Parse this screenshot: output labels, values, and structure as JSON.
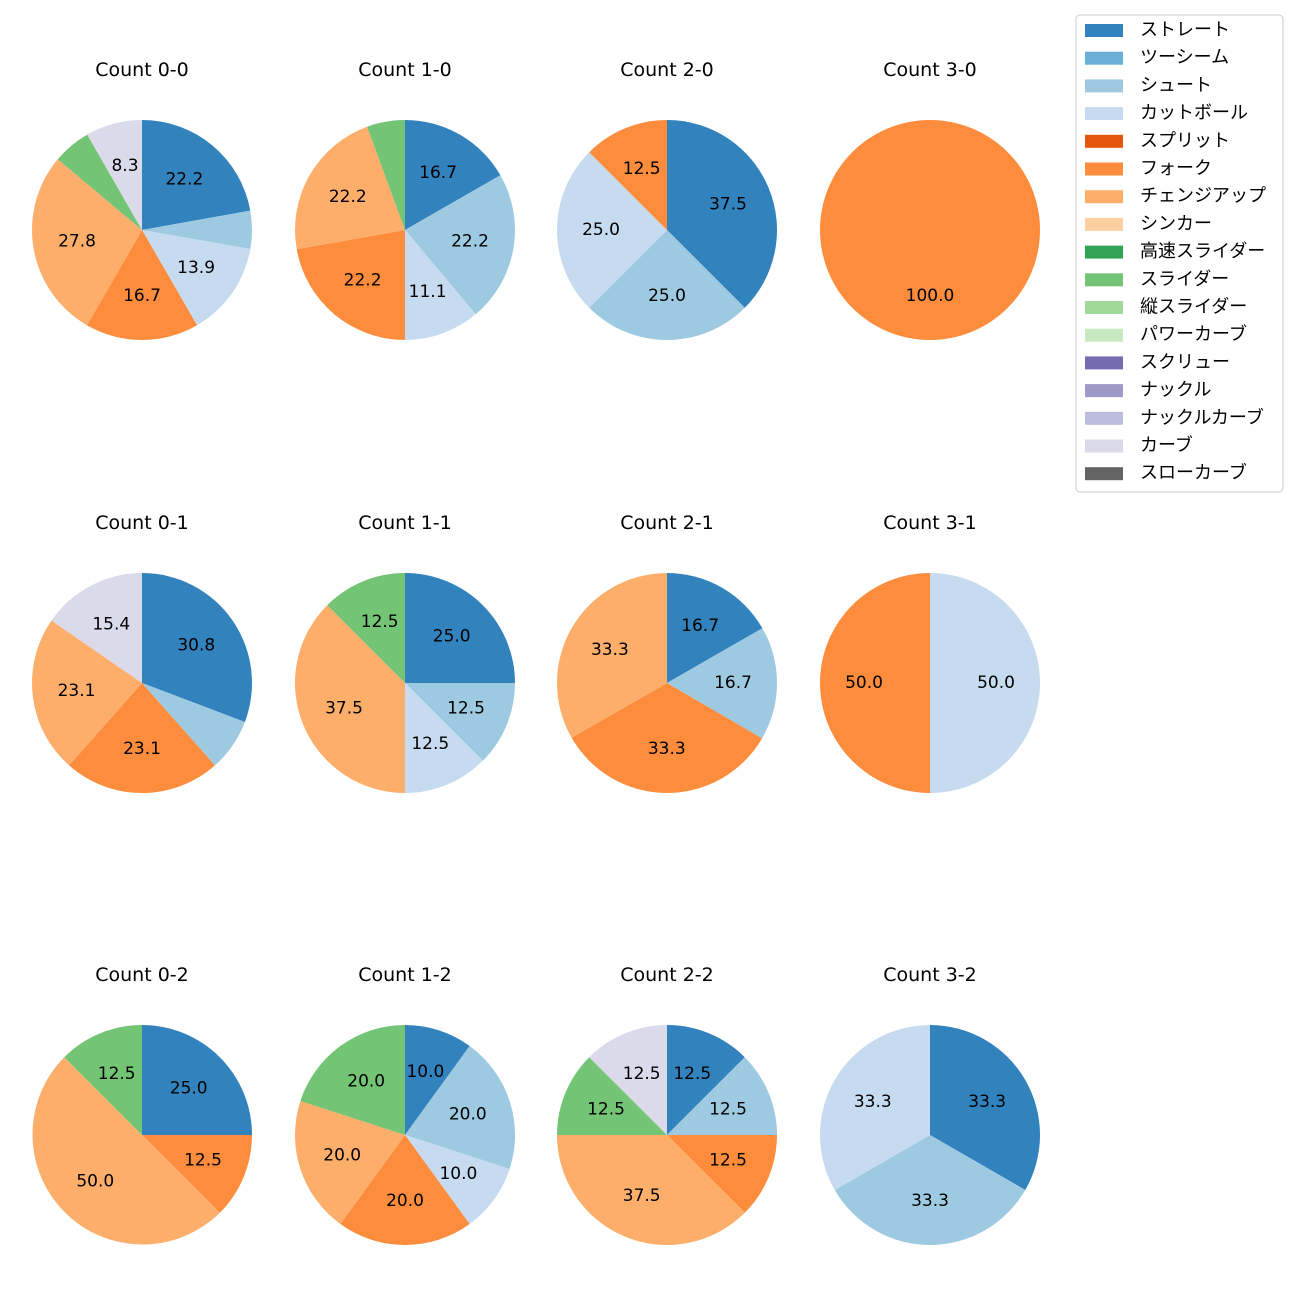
{
  "chart_data": {
    "type": "pie",
    "legend_placement": "top-right",
    "legend": [
      {
        "name": "ストレート",
        "color": "#3182bd"
      },
      {
        "name": "ツーシーム",
        "color": "#6baed6"
      },
      {
        "name": "シュート",
        "color": "#9ecae1"
      },
      {
        "name": "カットボール",
        "color": "#c6dbef"
      },
      {
        "name": "スプリット",
        "color": "#e6550d"
      },
      {
        "name": "フォーク",
        "color": "#fd8d3c"
      },
      {
        "name": "チェンジアップ",
        "color": "#fdae6b"
      },
      {
        "name": "シンカー",
        "color": "#fdd0a2"
      },
      {
        "name": "高速スライダー",
        "color": "#31a354"
      },
      {
        "name": "スライダー",
        "color": "#74c476"
      },
      {
        "name": "縦スライダー",
        "color": "#a1d99b"
      },
      {
        "name": "パワーカーブ",
        "color": "#c7e9c0"
      },
      {
        "name": "スクリュー",
        "color": "#756bb1"
      },
      {
        "name": "ナックル",
        "color": "#9e9ac8"
      },
      {
        "name": "ナックルカーブ",
        "color": "#bcbddc"
      },
      {
        "name": "カーブ",
        "color": "#dadaeb"
      },
      {
        "name": "スローカーブ",
        "color": "#636363"
      }
    ],
    "pies": [
      {
        "title": "Count 0-0",
        "slices": [
          {
            "type": "ストレート",
            "value": 22.2,
            "label": "22.2"
          },
          {
            "type": "シュート",
            "value": 5.6,
            "label": ""
          },
          {
            "type": "カットボール",
            "value": 13.9,
            "label": "13.9"
          },
          {
            "type": "フォーク",
            "value": 16.7,
            "label": "16.7"
          },
          {
            "type": "チェンジアップ",
            "value": 27.8,
            "label": "27.8"
          },
          {
            "type": "スライダー",
            "value": 5.6,
            "label": ""
          },
          {
            "type": "カーブ",
            "value": 8.3,
            "label": "8.3"
          }
        ]
      },
      {
        "title": "Count 1-0",
        "slices": [
          {
            "type": "ストレート",
            "value": 16.7,
            "label": "16.7"
          },
          {
            "type": "シュート",
            "value": 22.2,
            "label": "22.2"
          },
          {
            "type": "カットボール",
            "value": 11.1,
            "label": "11.1"
          },
          {
            "type": "フォーク",
            "value": 22.2,
            "label": "22.2"
          },
          {
            "type": "チェンジアップ",
            "value": 22.2,
            "label": "22.2"
          },
          {
            "type": "スライダー",
            "value": 5.6,
            "label": ""
          }
        ]
      },
      {
        "title": "Count 2-0",
        "slices": [
          {
            "type": "ストレート",
            "value": 37.5,
            "label": "37.5"
          },
          {
            "type": "シュート",
            "value": 25.0,
            "label": "25.0"
          },
          {
            "type": "カットボール",
            "value": 25.0,
            "label": "25.0"
          },
          {
            "type": "フォーク",
            "value": 12.5,
            "label": "12.5"
          }
        ]
      },
      {
        "title": "Count 3-0",
        "slices": [
          {
            "type": "フォーク",
            "value": 100.0,
            "label": "100.0"
          }
        ]
      },
      {
        "title": "Count 0-1",
        "slices": [
          {
            "type": "ストレート",
            "value": 30.8,
            "label": "30.8"
          },
          {
            "type": "シュート",
            "value": 7.7,
            "label": ""
          },
          {
            "type": "フォーク",
            "value": 23.1,
            "label": "23.1"
          },
          {
            "type": "チェンジアップ",
            "value": 23.1,
            "label": "23.1"
          },
          {
            "type": "カーブ",
            "value": 15.4,
            "label": "15.4"
          }
        ]
      },
      {
        "title": "Count 1-1",
        "slices": [
          {
            "type": "ストレート",
            "value": 25.0,
            "label": "25.0"
          },
          {
            "type": "シュート",
            "value": 12.5,
            "label": "12.5"
          },
          {
            "type": "カットボール",
            "value": 12.5,
            "label": "12.5"
          },
          {
            "type": "チェンジアップ",
            "value": 37.5,
            "label": "37.5"
          },
          {
            "type": "スライダー",
            "value": 12.5,
            "label": "12.5"
          }
        ]
      },
      {
        "title": "Count 2-1",
        "slices": [
          {
            "type": "ストレート",
            "value": 16.7,
            "label": "16.7"
          },
          {
            "type": "シュート",
            "value": 16.7,
            "label": "16.7"
          },
          {
            "type": "フォーク",
            "value": 33.3,
            "label": "33.3"
          },
          {
            "type": "チェンジアップ",
            "value": 33.3,
            "label": "33.3"
          }
        ]
      },
      {
        "title": "Count 3-1",
        "slices": [
          {
            "type": "カットボール",
            "value": 50.0,
            "label": "50.0"
          },
          {
            "type": "フォーク",
            "value": 50.0,
            "label": "50.0"
          }
        ]
      },
      {
        "title": "Count 0-2",
        "slices": [
          {
            "type": "ストレート",
            "value": 25.0,
            "label": "25.0"
          },
          {
            "type": "フォーク",
            "value": 12.5,
            "label": "12.5"
          },
          {
            "type": "チェンジアップ",
            "value": 50.0,
            "label": "50.0"
          },
          {
            "type": "スライダー",
            "value": 12.5,
            "label": "12.5"
          }
        ]
      },
      {
        "title": "Count 1-2",
        "slices": [
          {
            "type": "ストレート",
            "value": 10.0,
            "label": "10.0"
          },
          {
            "type": "シュート",
            "value": 20.0,
            "label": "20.0"
          },
          {
            "type": "カットボール",
            "value": 10.0,
            "label": "10.0"
          },
          {
            "type": "フォーク",
            "value": 20.0,
            "label": "20.0"
          },
          {
            "type": "チェンジアップ",
            "value": 20.0,
            "label": "20.0"
          },
          {
            "type": "スライダー",
            "value": 20.0,
            "label": "20.0"
          }
        ]
      },
      {
        "title": "Count 2-2",
        "slices": [
          {
            "type": "ストレート",
            "value": 12.5,
            "label": "12.5"
          },
          {
            "type": "シュート",
            "value": 12.5,
            "label": "12.5"
          },
          {
            "type": "フォーク",
            "value": 12.5,
            "label": "12.5"
          },
          {
            "type": "チェンジアップ",
            "value": 37.5,
            "label": "37.5"
          },
          {
            "type": "スライダー",
            "value": 12.5,
            "label": "12.5"
          },
          {
            "type": "カーブ",
            "value": 12.5,
            "label": "12.5"
          }
        ]
      },
      {
        "title": "Count 3-2",
        "slices": [
          {
            "type": "ストレート",
            "value": 33.3,
            "label": "33.3"
          },
          {
            "type": "シュート",
            "value": 33.3,
            "label": "33.3"
          },
          {
            "type": "カットボール",
            "value": 33.3,
            "label": "33.3"
          }
        ]
      }
    ]
  }
}
